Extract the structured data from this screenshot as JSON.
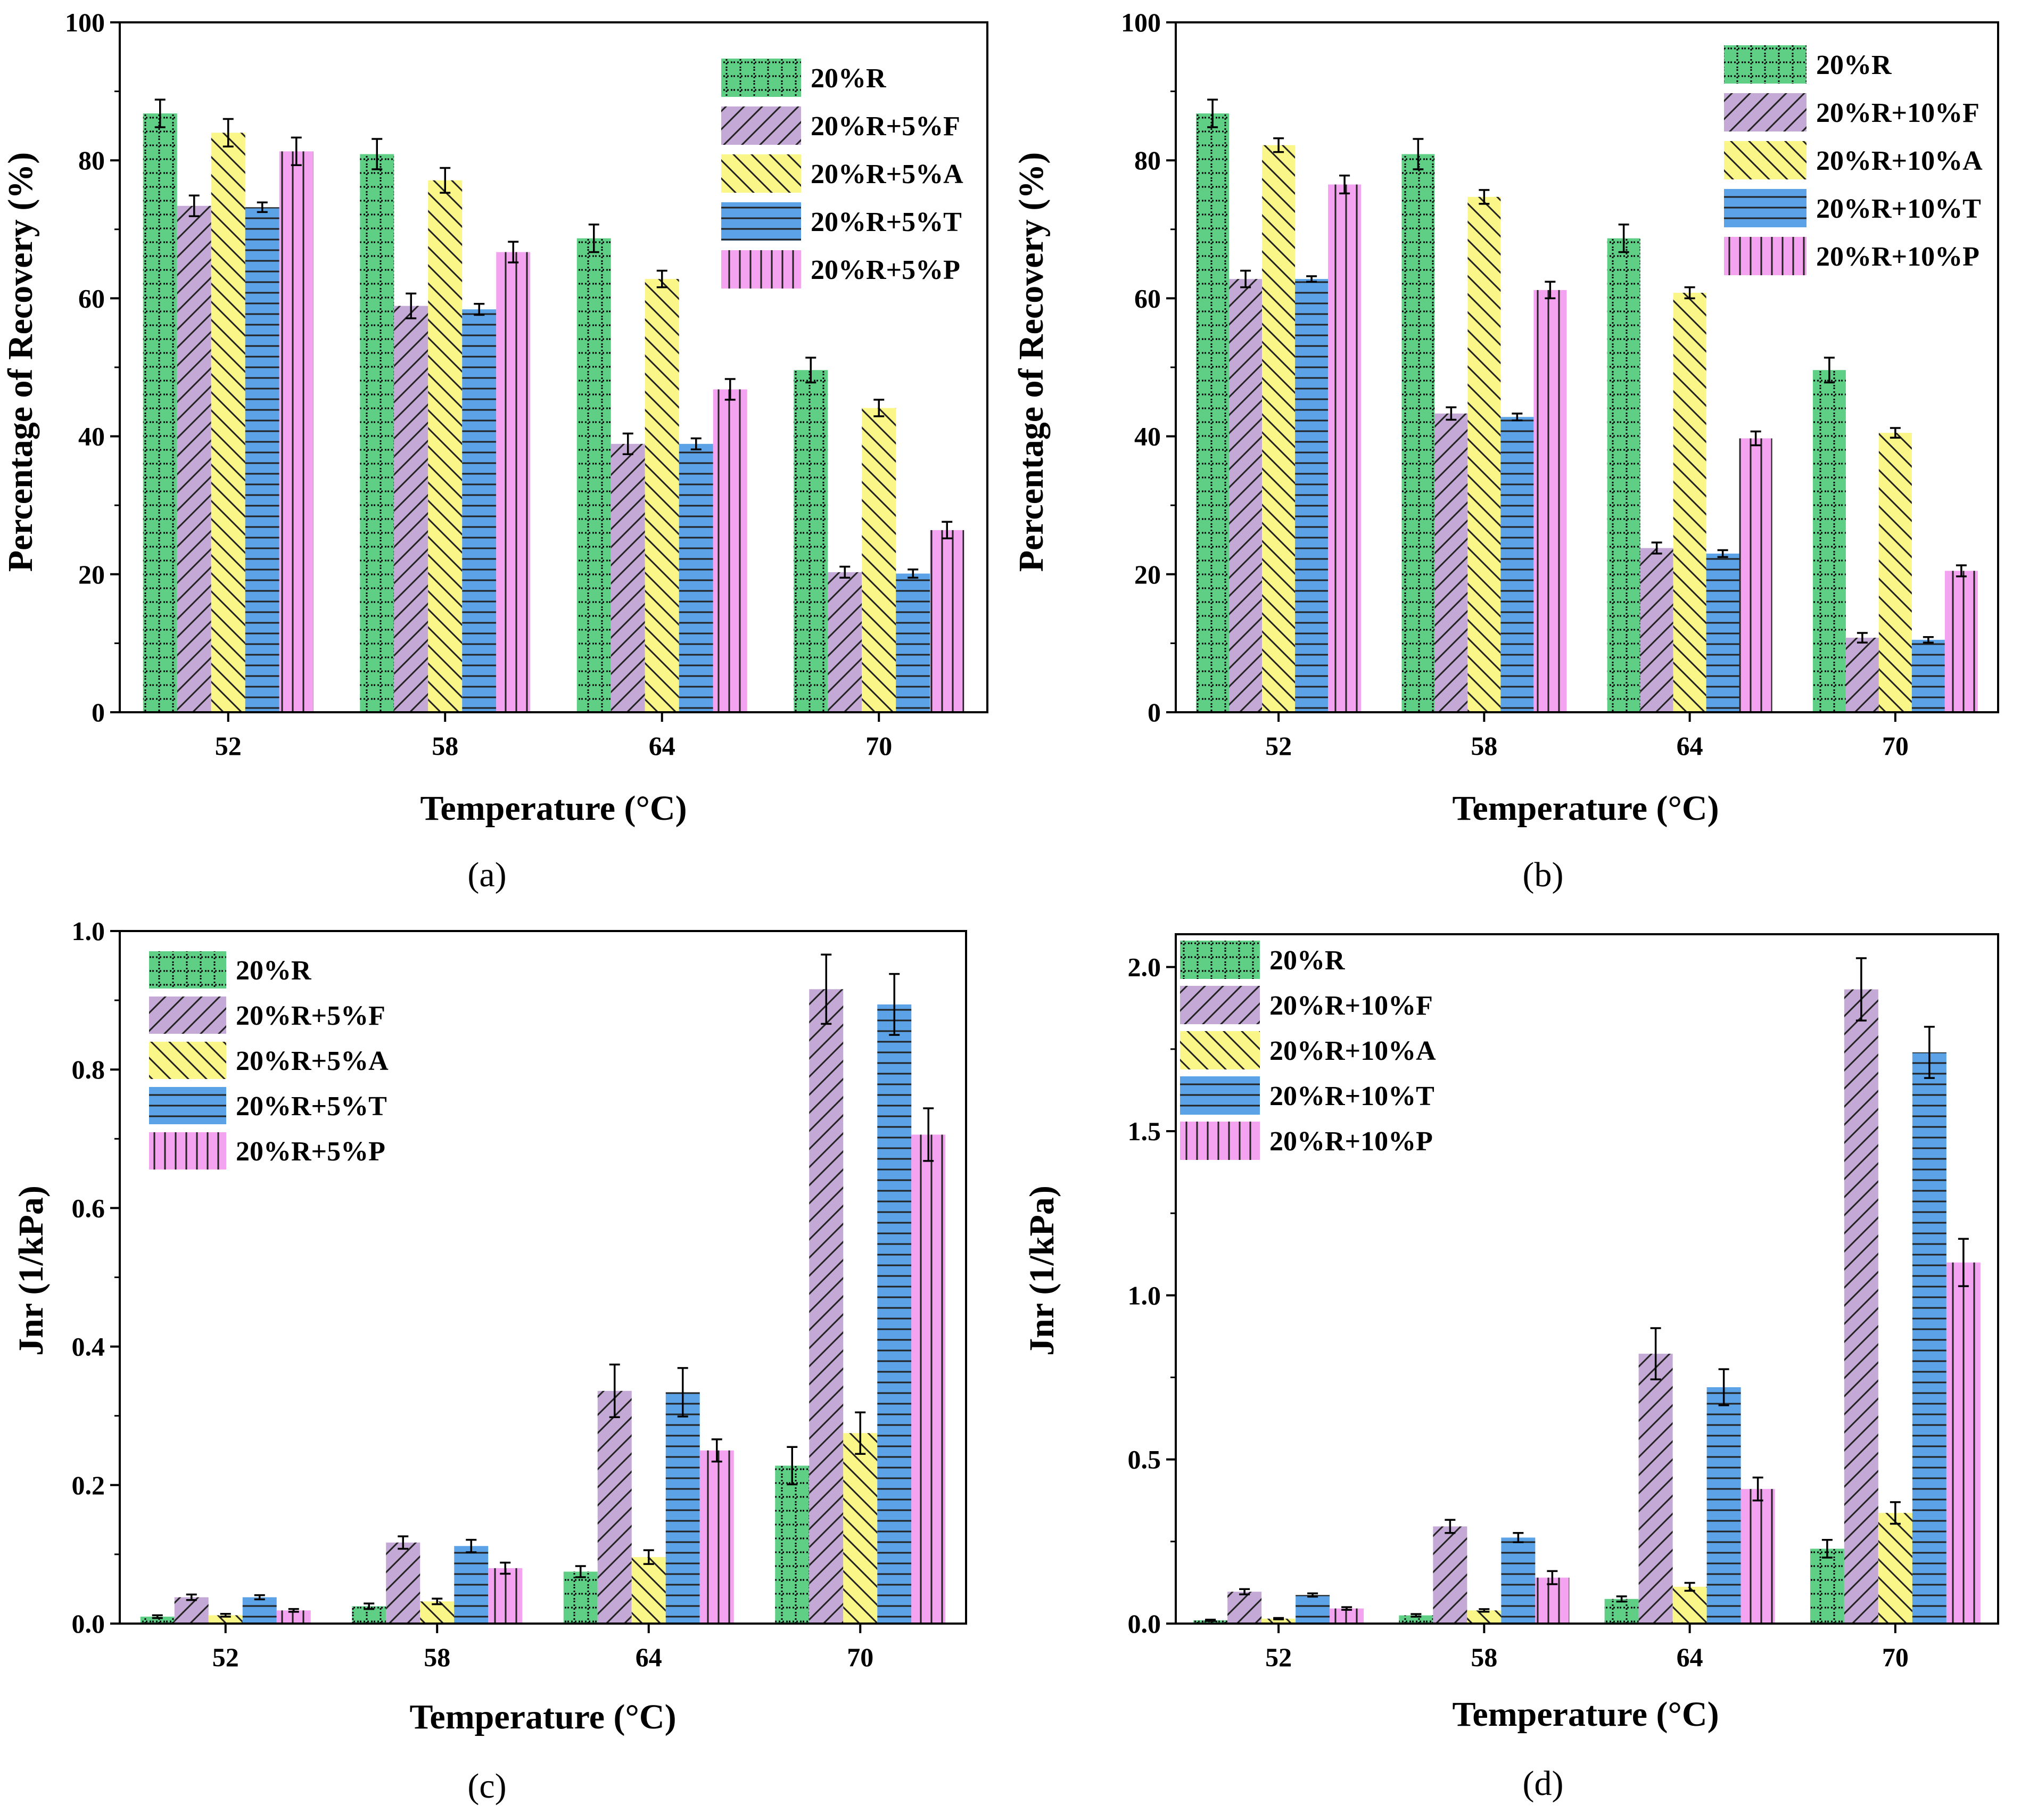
{
  "colors": {
    "20%R": "#5fcf86",
    "F": "#c4a9d6",
    "A": "#fbf688",
    "T": "#5ba3e6",
    "P": "#f3a3ef"
  },
  "chart_data": [
    {
      "type": "bar",
      "caption": "(a)",
      "xlabel": "Temperature (°C)",
      "ylabel": "Percentage of Recovery (%)",
      "categories": [
        "52",
        "58",
        "64",
        "70"
      ],
      "ylim": [
        0,
        100
      ],
      "yticks": [
        0,
        20,
        40,
        60,
        80,
        100
      ],
      "ytick_labels": [
        "0",
        "20",
        "40",
        "60",
        "80",
        "100"
      ],
      "legend_position": "top-right",
      "series": [
        {
          "name": "20%R",
          "pattern": "R",
          "values": [
            86.8,
            80.9,
            68.7,
            49.6
          ],
          "errors": [
            2.0,
            2.2,
            2.0,
            1.8
          ]
        },
        {
          "name": "20%R+5%F",
          "pattern": "F",
          "values": [
            73.4,
            58.9,
            38.9,
            20.3
          ],
          "errors": [
            1.5,
            1.8,
            1.5,
            0.8
          ]
        },
        {
          "name": "20%R+5%A",
          "pattern": "A",
          "values": [
            84.0,
            77.1,
            62.8,
            44.1
          ],
          "errors": [
            2.0,
            1.8,
            1.2,
            1.2
          ]
        },
        {
          "name": "20%R+5%T",
          "pattern": "T",
          "values": [
            73.2,
            58.4,
            38.9,
            20.1
          ],
          "errors": [
            0.7,
            0.8,
            0.8,
            0.6
          ]
        },
        {
          "name": "20%R+5%P",
          "pattern": "P",
          "values": [
            81.3,
            66.7,
            46.8,
            26.4
          ],
          "errors": [
            2.0,
            1.5,
            1.5,
            1.2
          ]
        }
      ]
    },
    {
      "type": "bar",
      "caption": "(b)",
      "xlabel": "Temperature (°C)",
      "ylabel": "Percentage of Recovery (%)",
      "categories": [
        "52",
        "58",
        "64",
        "70"
      ],
      "ylim": [
        0,
        100
      ],
      "yticks": [
        0,
        20,
        40,
        60,
        80,
        100
      ],
      "ytick_labels": [
        "0",
        "20",
        "40",
        "60",
        "80",
        "100"
      ],
      "legend_position": "top-right",
      "series": [
        {
          "name": "20%R",
          "pattern": "R",
          "values": [
            86.8,
            80.9,
            68.7,
            49.6
          ],
          "errors": [
            2.0,
            2.2,
            2.0,
            1.8
          ]
        },
        {
          "name": "20%R+10%F",
          "pattern": "F",
          "values": [
            62.8,
            43.3,
            23.8,
            10.8
          ],
          "errors": [
            1.2,
            0.9,
            0.8,
            0.7
          ]
        },
        {
          "name": "20%R+10%A",
          "pattern": "A",
          "values": [
            82.2,
            74.7,
            60.8,
            40.5
          ],
          "errors": [
            1.0,
            1.0,
            0.8,
            0.7
          ]
        },
        {
          "name": "20%R+10%T",
          "pattern": "T",
          "values": [
            62.8,
            42.8,
            23.0,
            10.5
          ],
          "errors": [
            0.4,
            0.5,
            0.5,
            0.4
          ]
        },
        {
          "name": "20%R+10%P",
          "pattern": "P",
          "values": [
            76.5,
            61.2,
            39.7,
            20.5
          ],
          "errors": [
            1.3,
            1.2,
            1.0,
            0.8
          ]
        }
      ]
    },
    {
      "type": "bar",
      "caption": "(c)",
      "xlabel": "Temperature (°C)",
      "ylabel": "Jnr (1/kPa)",
      "categories": [
        "52",
        "58",
        "64",
        "70"
      ],
      "ylim": [
        0,
        1.0
      ],
      "yticks": [
        0,
        0.2,
        0.4,
        0.6,
        0.8,
        1.0
      ],
      "ytick_labels": [
        "0.0",
        "0.2",
        "0.4",
        "0.6",
        "0.8",
        "1.0"
      ],
      "legend_position": "top-left",
      "series": [
        {
          "name": "20%R",
          "pattern": "R",
          "values": [
            0.01,
            0.025,
            0.075,
            0.228
          ],
          "errors": [
            0.002,
            0.004,
            0.008,
            0.027
          ]
        },
        {
          "name": "20%R+5%F",
          "pattern": "F",
          "values": [
            0.038,
            0.117,
            0.336,
            0.916
          ],
          "errors": [
            0.004,
            0.009,
            0.038,
            0.05
          ]
        },
        {
          "name": "20%R+5%A",
          "pattern": "A",
          "values": [
            0.012,
            0.032,
            0.096,
            0.275
          ],
          "errors": [
            0.002,
            0.004,
            0.01,
            0.03
          ]
        },
        {
          "name": "20%R+5%T",
          "pattern": "T",
          "values": [
            0.038,
            0.112,
            0.334,
            0.894
          ],
          "errors": [
            0.003,
            0.009,
            0.035,
            0.044
          ]
        },
        {
          "name": "20%R+5%P",
          "pattern": "P",
          "values": [
            0.019,
            0.08,
            0.25,
            0.706
          ],
          "errors": [
            0.002,
            0.008,
            0.016,
            0.038
          ]
        }
      ]
    },
    {
      "type": "bar",
      "caption": "(d)",
      "xlabel": "Temperature (°C)",
      "ylabel": "Jnr (1/kPa)",
      "categories": [
        "52",
        "58",
        "64",
        "70"
      ],
      "ylim": [
        0,
        2.1
      ],
      "yticks": [
        0,
        0.5,
        1.0,
        1.5,
        2.0
      ],
      "ytick_labels": [
        "0.0",
        "0.5",
        "1.0",
        "1.5",
        "2.0"
      ],
      "legend_position": "top-left",
      "series": [
        {
          "name": "20%R",
          "pattern": "R",
          "values": [
            0.01,
            0.025,
            0.075,
            0.228
          ],
          "errors": [
            0.002,
            0.004,
            0.008,
            0.027
          ]
        },
        {
          "name": "20%R+10%F",
          "pattern": "F",
          "values": [
            0.097,
            0.296,
            0.822,
            1.932
          ],
          "errors": [
            0.008,
            0.02,
            0.078,
            0.095
          ]
        },
        {
          "name": "20%R+10%A",
          "pattern": "A",
          "values": [
            0.015,
            0.04,
            0.112,
            0.337
          ],
          "errors": [
            0.002,
            0.004,
            0.012,
            0.033
          ]
        },
        {
          "name": "20%R+10%T",
          "pattern": "T",
          "values": [
            0.087,
            0.262,
            0.72,
            1.74
          ],
          "errors": [
            0.005,
            0.014,
            0.055,
            0.078
          ]
        },
        {
          "name": "20%R+10%P",
          "pattern": "P",
          "values": [
            0.046,
            0.14,
            0.41,
            1.1
          ],
          "errors": [
            0.004,
            0.02,
            0.035,
            0.072
          ]
        }
      ]
    }
  ]
}
